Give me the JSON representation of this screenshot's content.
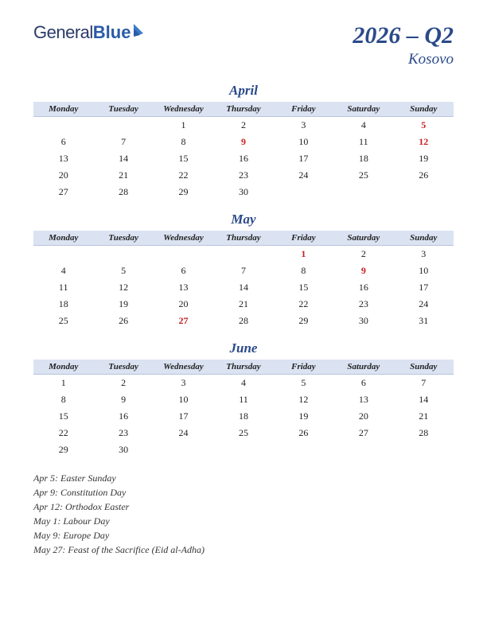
{
  "logo": {
    "text1": "General",
    "text2": "Blue"
  },
  "title": {
    "quarter": "2026 – Q2",
    "country": "Kosovo"
  },
  "weekdays": [
    "Monday",
    "Tuesday",
    "Wednesday",
    "Thursday",
    "Friday",
    "Saturday",
    "Sunday"
  ],
  "colors": {
    "header_bg": "#dbe3f2",
    "header_border": "#b8c4dd",
    "title_color": "#2a4a8a",
    "holiday_color": "#c81e1e",
    "text_color": "#222222",
    "logo_color1": "#2a3a6a",
    "logo_color2": "#2a5aa8"
  },
  "months": [
    {
      "name": "April",
      "weeks": [
        [
          "",
          "",
          "1",
          "2",
          "3",
          "4",
          {
            "d": "5",
            "h": true
          }
        ],
        [
          "6",
          "7",
          "8",
          {
            "d": "9",
            "h": true
          },
          "10",
          "11",
          {
            "d": "12",
            "h": true
          }
        ],
        [
          "13",
          "14",
          "15",
          "16",
          "17",
          "18",
          "19"
        ],
        [
          "20",
          "21",
          "22",
          "23",
          "24",
          "25",
          "26"
        ],
        [
          "27",
          "28",
          "29",
          "30",
          "",
          "",
          ""
        ]
      ]
    },
    {
      "name": "May",
      "weeks": [
        [
          "",
          "",
          "",
          "",
          {
            "d": "1",
            "h": true
          },
          "2",
          "3"
        ],
        [
          "4",
          "5",
          "6",
          "7",
          "8",
          {
            "d": "9",
            "h": true
          },
          "10"
        ],
        [
          "11",
          "12",
          "13",
          "14",
          "15",
          "16",
          "17"
        ],
        [
          "18",
          "19",
          "20",
          "21",
          "22",
          "23",
          "24"
        ],
        [
          "25",
          "26",
          {
            "d": "27",
            "h": true
          },
          "28",
          "29",
          "30",
          "31"
        ]
      ]
    },
    {
      "name": "June",
      "weeks": [
        [
          "1",
          "2",
          "3",
          "4",
          "5",
          "6",
          "7"
        ],
        [
          "8",
          "9",
          "10",
          "11",
          "12",
          "13",
          "14"
        ],
        [
          "15",
          "16",
          "17",
          "18",
          "19",
          "20",
          "21"
        ],
        [
          "22",
          "23",
          "24",
          "25",
          "26",
          "27",
          "28"
        ],
        [
          "29",
          "30",
          "",
          "",
          "",
          "",
          ""
        ]
      ]
    }
  ],
  "holidays_list": [
    "Apr 5: Easter Sunday",
    "Apr 9: Constitution Day",
    "Apr 12: Orthodox Easter",
    "May 1: Labour Day",
    "May 9: Europe Day",
    "May 27: Feast of the Sacrifice (Eid al-Adha)"
  ]
}
